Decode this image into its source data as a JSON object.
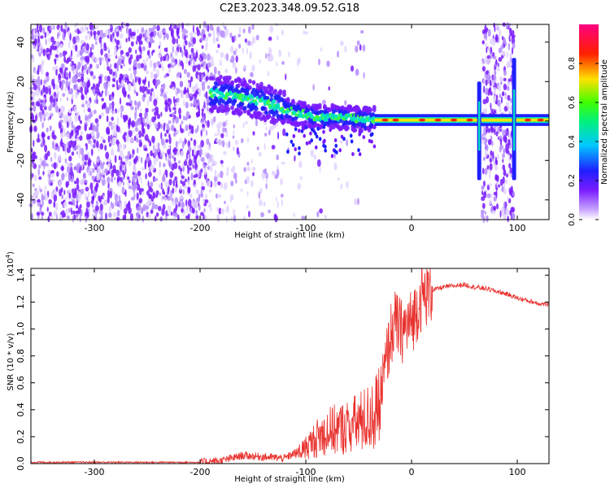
{
  "title": "C2E3.2023.348.09.52.G18",
  "chart_data": [
    {
      "type": "heatmap",
      "xlabel": "Height of straight line (km)",
      "ylabel": "Frequency (Hz)",
      "xlim": [
        -360,
        130
      ],
      "ylim": [
        -50,
        49
      ],
      "xticks": [
        -300,
        -200,
        -100,
        0,
        100
      ],
      "yticks": [
        -40,
        -20,
        0,
        20,
        40
      ],
      "colorbar": {
        "label": "Normalized spectral amplitude",
        "range": [
          0,
          1
        ],
        "ticks": [
          0.0,
          0.2,
          0.4,
          0.6,
          0.8
        ],
        "colormap": "white-purple-blue-cyan-green-yellow-red-magenta"
      },
      "ridge": [
        {
          "x": -190,
          "y": 14
        },
        {
          "x": -170,
          "y": 13
        },
        {
          "x": -150,
          "y": 11
        },
        {
          "x": -130,
          "y": 8
        },
        {
          "x": -110,
          "y": 4
        },
        {
          "x": -90,
          "y": 2
        },
        {
          "x": -70,
          "y": 2
        },
        {
          "x": -50,
          "y": 1
        },
        {
          "x": -30,
          "y": 1
        },
        {
          "x": 0,
          "y": 0.5
        },
        {
          "x": 60,
          "y": 0.5
        },
        {
          "x": 130,
          "y": 0.5
        }
      ]
    },
    {
      "type": "line",
      "xlabel": "Height of straight line (km)",
      "ylabel": "SNR (10 * v/v)",
      "y_multiplier": "(x10",
      "y_multiplier_exp": "4",
      "y_multiplier_close": ")",
      "xlim": [
        -360,
        130
      ],
      "ylim": [
        0,
        1.45
      ],
      "xticks": [
        -300,
        -200,
        -100,
        0,
        100
      ],
      "yticks": [
        0.0,
        0.2,
        0.4,
        0.6,
        0.8,
        1.0,
        1.2,
        1.4
      ],
      "series": [
        {
          "color": "#e8302c",
          "x": [
            -360,
            -200,
            -180,
            -160,
            -140,
            -120,
            -110,
            -100,
            -90,
            -80,
            -70,
            -60,
            -50,
            -40,
            -30,
            -25,
            -20,
            -15,
            -10,
            -5,
            0,
            5,
            10,
            20,
            30,
            40,
            50,
            60,
            70,
            80,
            90,
            100,
            110,
            120,
            130
          ],
          "y": [
            0.01,
            0.01,
            0.02,
            0.06,
            0.05,
            0.04,
            0.08,
            0.14,
            0.22,
            0.28,
            0.3,
            0.32,
            0.36,
            0.4,
            0.48,
            0.7,
            0.95,
            1.05,
            0.98,
            1.02,
            1.05,
            1.15,
            1.24,
            1.29,
            1.31,
            1.32,
            1.33,
            1.31,
            1.3,
            1.28,
            1.26,
            1.23,
            1.21,
            1.19,
            1.18
          ]
        }
      ]
    }
  ]
}
